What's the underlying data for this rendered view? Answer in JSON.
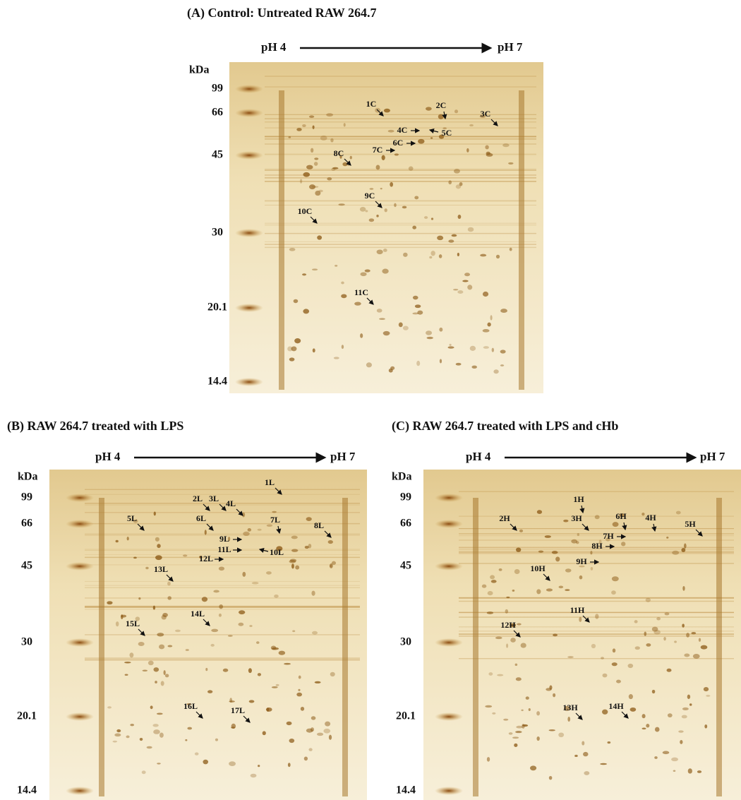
{
  "panels": [
    {
      "title": "(A) Control: Untreated RAW 264.7",
      "ph_start": "pH 4",
      "ph_end": "pH 7",
      "unit": "kDa",
      "markers": [
        "99",
        "66",
        "45",
        "30",
        "20.1",
        "14.4"
      ],
      "spots": [
        "1C",
        "2C",
        "3C",
        "4C",
        "5C",
        "6C",
        "7C",
        "8C",
        "9C",
        "10C",
        "11C"
      ]
    },
    {
      "title": "(B) RAW 264.7 treated with LPS",
      "ph_start": "pH 4",
      "ph_end": "pH 7",
      "unit": "kDa",
      "markers": [
        "99",
        "66",
        "45",
        "30",
        "20.1",
        "14.4"
      ],
      "spots": [
        "1L",
        "2L",
        "3L",
        "4L",
        "5L",
        "6L",
        "7L",
        "8L",
        "9L",
        "10L",
        "11L",
        "12L",
        "13L",
        "14L",
        "15L",
        "16L",
        "17L"
      ]
    },
    {
      "title": "(C) RAW 264.7 treated with LPS and cHb",
      "ph_start": "pH 4",
      "ph_end": "pH 7",
      "unit": "kDa",
      "markers": [
        "99",
        "66",
        "45",
        "30",
        "20.1",
        "14.4"
      ],
      "spots": [
        "1H",
        "2H",
        "3H",
        "4H",
        "5H",
        "6H",
        "7H",
        "8H",
        "9H",
        "10H",
        "11H",
        "12H",
        "13H",
        "14H"
      ]
    }
  ]
}
